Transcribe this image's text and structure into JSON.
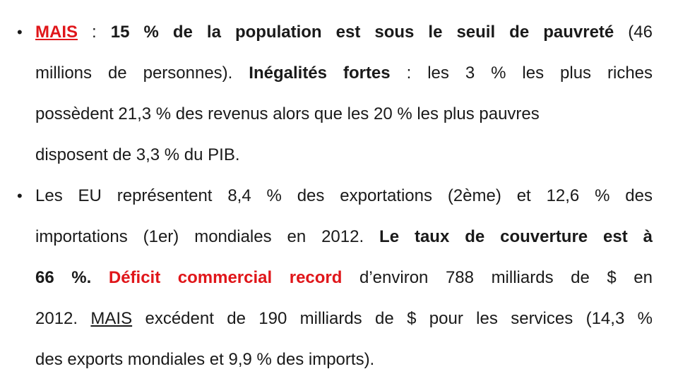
{
  "bullets": [
    {
      "dot": "•",
      "lines": [
        [
          "MAIS",
          " : ",
          "15 % de la population est sous le seuil de pauvreté",
          " (46"
        ],
        [
          "millions de personnes). ",
          "Inégalités fortes",
          " : les 3 % les plus riches"
        ],
        [
          "possèdent  21,3 % des revenus alors que les 20 % les plus pauvres "
        ],
        [
          "disposent de 3,3 % du PIB."
        ]
      ]
    },
    {
      "dot": "•",
      "lines": [
        [
          "Les EU représentent 8,4 % des exportations (2ème) et 12,6 % des"
        ],
        [
          "importations (1er) mondiales en 2012. ",
          "Le taux de couverture est à"
        ],
        [
          "66 %.",
          " ",
          "Déficit commercial record",
          " d’environ 788 milliards de $ en"
        ],
        [
          "2012. ",
          "MAIS",
          " excédent de 190 milliards de $ pour les services (14,3 %"
        ],
        [
          "des exports mondiales et 9,9 % des imports)."
        ]
      ]
    }
  ]
}
